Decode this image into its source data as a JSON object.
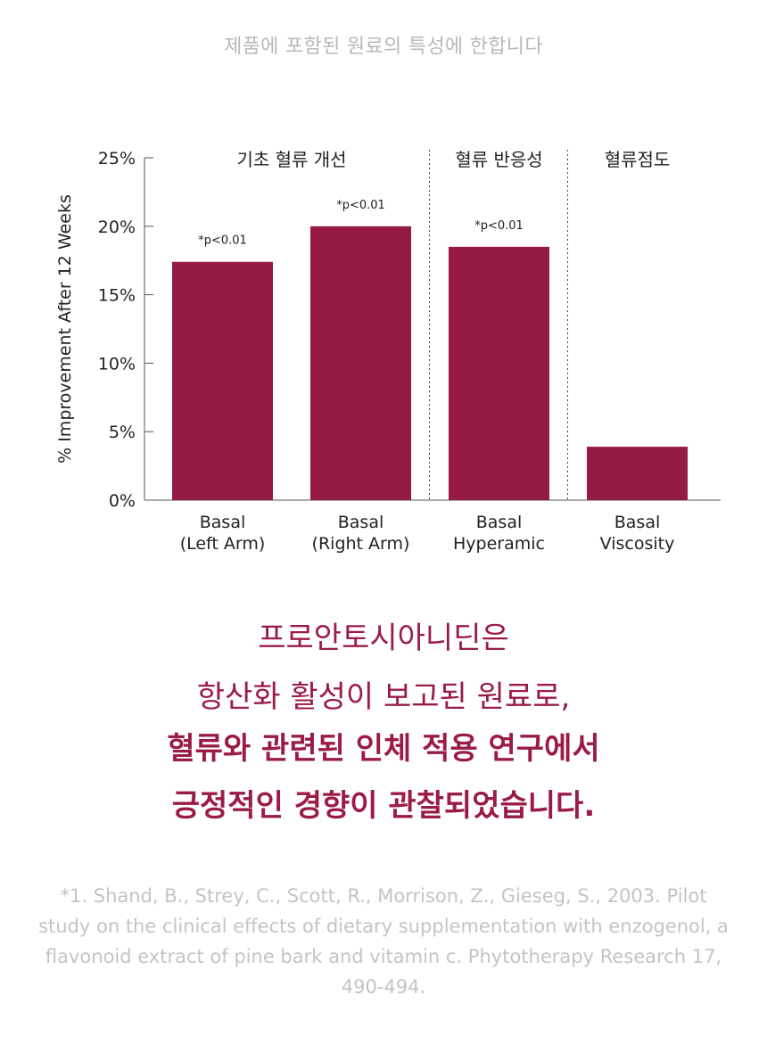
{
  "header_note": "제품에 포함된 원료의 특성에 한합니다",
  "chart_data": {
    "type": "bar",
    "ylabel": "% Improvement After 12 Weeks",
    "ylim": [
      0,
      25
    ],
    "yticks": [
      0,
      5,
      10,
      15,
      20,
      25
    ],
    "ytick_labels": [
      "0%",
      "5%",
      "10%",
      "15%",
      "20%",
      "25%"
    ],
    "categories": [
      [
        "Basal",
        "(Left Arm)"
      ],
      [
        "Basal",
        "(Right Arm)"
      ],
      [
        "Basal",
        "Hyperamic"
      ],
      [
        "Basal",
        "Viscosity"
      ]
    ],
    "values": [
      17.4,
      20.0,
      18.5,
      3.9
    ],
    "annotations": [
      "*p<0.01",
      "*p<0.01",
      "*p<0.01",
      ""
    ],
    "groups": [
      {
        "label": "기초 혈류 개선",
        "from": 0,
        "to": 1
      },
      {
        "label": "혈류 반응성",
        "from": 2,
        "to": 2
      },
      {
        "label": "혈류점도",
        "from": 3,
        "to": 3
      }
    ],
    "bar_color": "#951a45"
  },
  "headline": {
    "line1": "프로안토시아니딘은",
    "line2": "항산화 활성이 보고된 원료로,",
    "line3": "혈류와 관련된 인체 적용 연구에서",
    "line4": "긍정적인 경향이 관찰되었습니다."
  },
  "reference": "*1. Shand, B., Strey, C., Scott, R., Morrison, Z., Gieseg, S., 2003. Pilot study on the clinical effects of dietary supplementation with enzogenol, a flavonoid extract of pine bark and vitamin c. Phytotherapy Research 17, 490-494."
}
